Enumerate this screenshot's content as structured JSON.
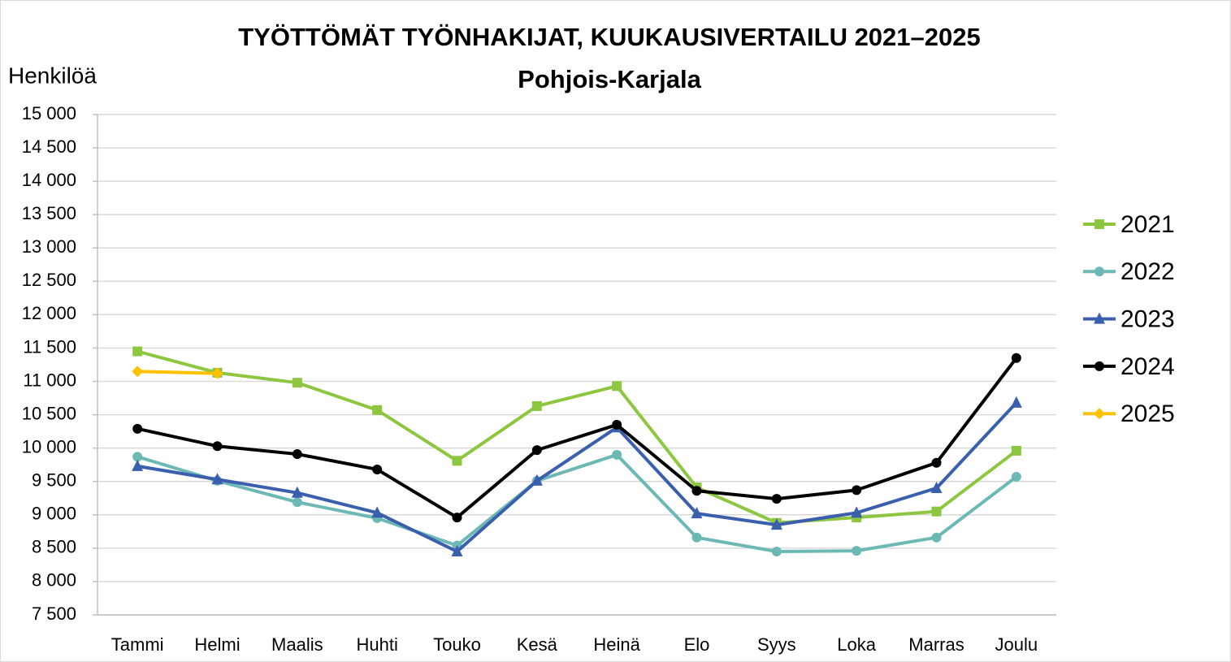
{
  "chart_data": {
    "type": "line",
    "title": "TYÖTTÖMÄT TYÖNHAKIJAT, KUUKAUSIVERTAILU 2021–2025",
    "subtitle": "Pohjois-Karjala",
    "y_label": "Henkilöä",
    "categories": [
      "Tammi",
      "Helmi",
      "Maalis",
      "Huhti",
      "Touko",
      "Kesä",
      "Heinä",
      "Elo",
      "Syys",
      "Loka",
      "Marras",
      "Joulu"
    ],
    "series": [
      {
        "name": "2021",
        "color": "#8dc63f",
        "marker": "square",
        "values": [
          11450,
          11130,
          10980,
          10570,
          9810,
          10630,
          10930,
          9410,
          8880,
          8960,
          9050,
          9960
        ]
      },
      {
        "name": "2022",
        "color": "#6cb8b4",
        "marker": "circle",
        "values": [
          9870,
          9510,
          9190,
          8950,
          8540,
          9510,
          9900,
          8660,
          8450,
          8460,
          8660,
          9570
        ]
      },
      {
        "name": "2023",
        "color": "#3a5fad",
        "marker": "triangle",
        "values": [
          9730,
          9530,
          9330,
          9030,
          8450,
          9510,
          10310,
          9020,
          8850,
          9030,
          9400,
          10680
        ]
      },
      {
        "name": "2024",
        "color": "#000000",
        "marker": "circle",
        "values": [
          10290,
          10030,
          9910,
          9680,
          8960,
          9970,
          10350,
          9360,
          9240,
          9370,
          9780,
          11350
        ]
      },
      {
        "name": "2025",
        "color": "#ffc000",
        "marker": "diamond",
        "values": [
          11150,
          11120,
          null,
          null,
          null,
          null,
          null,
          null,
          null,
          null,
          null,
          null
        ]
      }
    ],
    "ylim": [
      7500,
      15000
    ],
    "yticks": [
      {
        "value": 7500,
        "label": "7 500"
      },
      {
        "value": 8000,
        "label": "8 000"
      },
      {
        "value": 8500,
        "label": "8 500"
      },
      {
        "value": 9000,
        "label": "9 000"
      },
      {
        "value": 9500,
        "label": "9 500"
      },
      {
        "value": 10000,
        "label": "10 000"
      },
      {
        "value": 10500,
        "label": "10 500"
      },
      {
        "value": 11000,
        "label": "11 000"
      },
      {
        "value": 11500,
        "label": "11 500"
      },
      {
        "value": 12000,
        "label": "12 000"
      },
      {
        "value": 12500,
        "label": "12 500"
      },
      {
        "value": 13000,
        "label": "13 000"
      },
      {
        "value": 13500,
        "label": "13 500"
      },
      {
        "value": 14000,
        "label": "14 000"
      },
      {
        "value": 14500,
        "label": "14 500"
      },
      {
        "value": 15000,
        "label": "15 000"
      }
    ],
    "grid": true,
    "legend": "right"
  }
}
